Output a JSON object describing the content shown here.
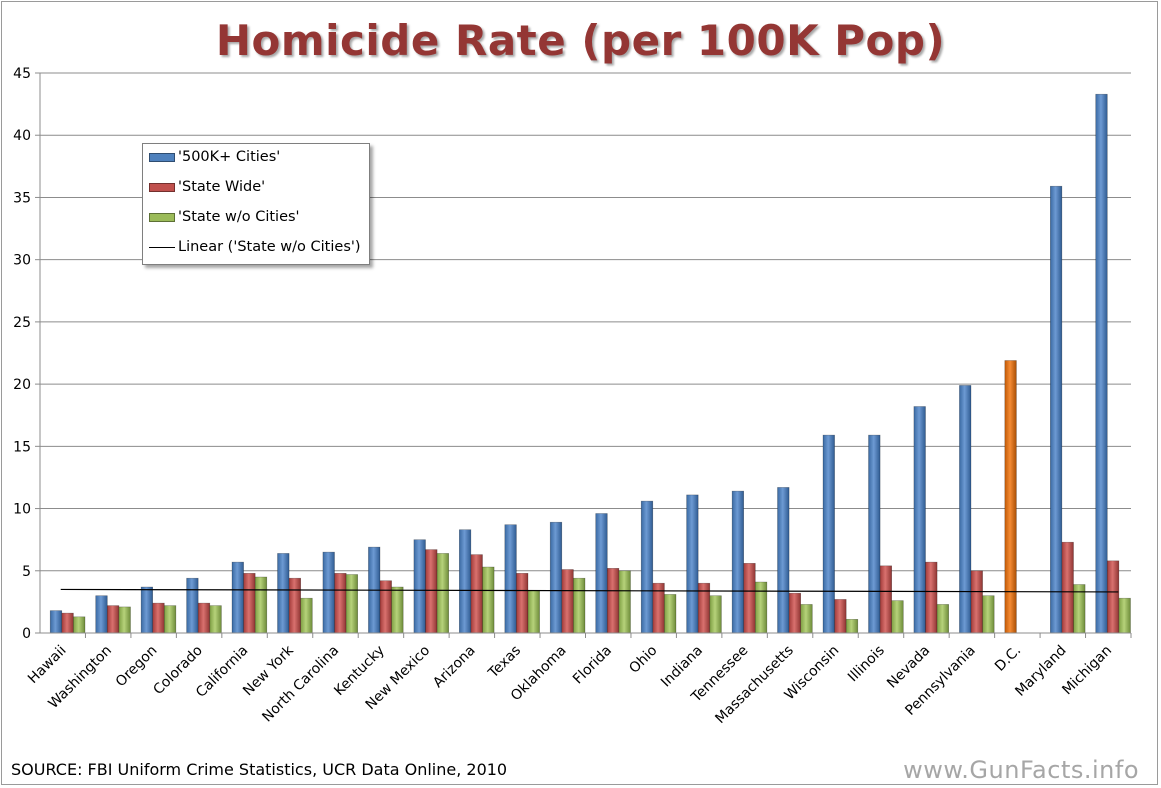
{
  "chart_data": {
    "type": "bar",
    "title": "Homicide Rate (per 100K Pop)",
    "xlabel": "",
    "ylabel": "",
    "ylim": [
      0,
      45
    ],
    "yticks": [
      0,
      5,
      10,
      15,
      20,
      25,
      30,
      35,
      40,
      45
    ],
    "grid": true,
    "legend_position": "upper-left",
    "categories": [
      "Hawaii",
      "Washington",
      "Oregon",
      "Colorado",
      "California",
      "New York",
      "North Carolina",
      "Kentucky",
      "New Mexico",
      "Arizona",
      "Texas",
      "Oklahoma",
      "Florida",
      "Ohio",
      "Indiana",
      "Tennessee",
      "Massachusetts",
      "Wisconsin",
      "Illinois",
      "Nevada",
      "Pennsylvania",
      "D.C.",
      "Maryland",
      "Michigan"
    ],
    "series": [
      {
        "name": "'500K+ Cities'",
        "color": "#4f81bd",
        "values": [
          1.8,
          3.0,
          3.7,
          4.4,
          5.7,
          6.4,
          6.5,
          6.9,
          7.5,
          8.3,
          8.7,
          8.9,
          9.6,
          10.6,
          11.1,
          11.4,
          11.7,
          15.9,
          15.9,
          18.2,
          19.9,
          21.9,
          35.9,
          43.3
        ]
      },
      {
        "name": "'State Wide'",
        "color": "#c0504d",
        "values": [
          1.6,
          2.2,
          2.4,
          2.4,
          4.8,
          4.4,
          4.8,
          4.2,
          6.7,
          6.3,
          4.8,
          5.1,
          5.2,
          4.0,
          4.0,
          5.6,
          3.2,
          2.7,
          5.4,
          5.7,
          5.0,
          null,
          7.3,
          5.8
        ]
      },
      {
        "name": "'State w/o Cities'",
        "color": "#9bbb59",
        "values": [
          1.3,
          2.1,
          2.2,
          2.2,
          4.5,
          2.8,
          4.7,
          3.7,
          6.4,
          5.3,
          3.4,
          4.4,
          5.0,
          3.1,
          3.0,
          4.1,
          2.3,
          1.1,
          2.6,
          2.3,
          3.0,
          null,
          3.9,
          2.8
        ]
      }
    ],
    "highlight": {
      "category": "D.C.",
      "series": "'500K+ Cities'",
      "color": "#e36c09"
    },
    "trendline": {
      "name": "Linear ('State w/o Cities')",
      "series": "'State w/o Cities'",
      "start_value": 3.5,
      "end_value": 3.3,
      "color": "#000000"
    },
    "source_note": "SOURCE: FBI Uniform Crime Statistics, UCR Data Online, 2010",
    "watermark": "www.GunFacts.info"
  }
}
